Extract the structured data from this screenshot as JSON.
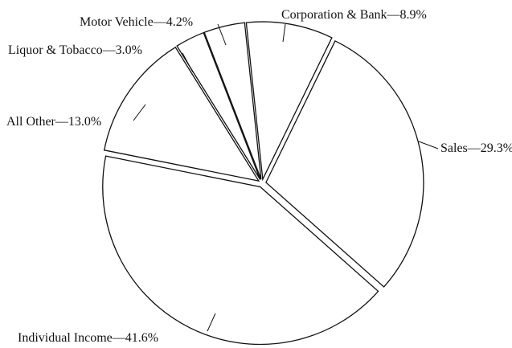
{
  "chart_data": {
    "type": "pie",
    "categories": [
      "Corporation & Bank",
      "Sales",
      "Individual Income",
      "All Other",
      "Liquor & Tobacco",
      "Motor Vehicle"
    ],
    "values": [
      8.9,
      29.3,
      41.6,
      13.0,
      3.0,
      4.2
    ],
    "value_labels": [
      "8.9%",
      "29.3%",
      "41.6%",
      "13.0%",
      "3.0%",
      "4.2%"
    ],
    "separator": "—",
    "color": "#ffffff"
  }
}
